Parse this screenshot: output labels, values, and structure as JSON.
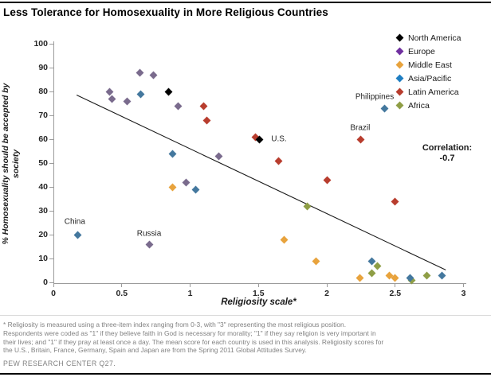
{
  "title": "Less Tolerance for Homosexuality in More Religious Countries",
  "x_axis": {
    "title": "Religiosity scale*",
    "ticks": [
      "0",
      "0.5",
      "1",
      "1.5",
      "2",
      "2.5",
      "3"
    ],
    "min": 0,
    "max": 3
  },
  "y_axis": {
    "title_line1": "% Homosexuality should be accepted by",
    "title_line2": "society",
    "ticks": [
      0,
      10,
      20,
      30,
      40,
      50,
      60,
      70,
      80,
      90,
      100
    ],
    "min": 0,
    "max": 100
  },
  "correlation": {
    "label": "Correlation:",
    "value": "-0.7"
  },
  "chart_data": {
    "type": "scatter",
    "xlabel": "Religiosity scale*",
    "ylabel": "% Homosexuality should be accepted by society",
    "xlim": [
      0,
      3
    ],
    "ylim": [
      0,
      100
    ],
    "correlation": -0.7,
    "trendline": {
      "x1": 0.17,
      "y1": 78.5,
      "x2": 2.87,
      "y2": 5.2
    },
    "series": [
      {
        "name": "North America",
        "color": "#000000",
        "point_color": "#000000",
        "points": [
          {
            "x": 0.84,
            "y": 80
          },
          {
            "x": 1.51,
            "y": 60,
            "label": "U.S.",
            "label_dx": 24,
            "label_dy": 0
          }
        ]
      },
      {
        "name": "Europe",
        "color": "#7030A0",
        "point_color": "#7A6B8D",
        "points": [
          {
            "x": 0.41,
            "y": 80
          },
          {
            "x": 0.43,
            "y": 77
          },
          {
            "x": 0.54,
            "y": 76
          },
          {
            "x": 0.63,
            "y": 88
          },
          {
            "x": 0.73,
            "y": 87
          },
          {
            "x": 0.91,
            "y": 74
          },
          {
            "x": 0.97,
            "y": 42
          },
          {
            "x": 1.21,
            "y": 53
          },
          {
            "x": 0.7,
            "y": 16,
            "label": "Russia",
            "label_dx": 0,
            "label_dy": -13
          }
        ]
      },
      {
        "name": "Middle East",
        "color": "#E8A33D",
        "point_color": "#E8A33D",
        "points": [
          {
            "x": 0.87,
            "y": 40
          },
          {
            "x": 1.69,
            "y": 18
          },
          {
            "x": 1.92,
            "y": 9
          },
          {
            "x": 2.24,
            "y": 2
          },
          {
            "x": 2.46,
            "y": 3
          },
          {
            "x": 2.5,
            "y": 2
          }
        ]
      },
      {
        "name": "Asia/Pacific",
        "color": "#1F7EC2",
        "point_color": "#44789E",
        "points": [
          {
            "x": 0.64,
            "y": 79
          },
          {
            "x": 0.87,
            "y": 54
          },
          {
            "x": 0.18,
            "y": 20,
            "label": "China",
            "label_dx": -4,
            "label_dy": -16
          },
          {
            "x": 1.04,
            "y": 39
          },
          {
            "x": 2.42,
            "y": 73,
            "label": "Philippines",
            "label_dx": -12,
            "label_dy": -14
          },
          {
            "x": 2.33,
            "y": 9
          },
          {
            "x": 2.61,
            "y": 2
          },
          {
            "x": 2.84,
            "y": 3
          }
        ]
      },
      {
        "name": "Latin America",
        "color": "#B83D2E",
        "point_color": "#B83D2E",
        "points": [
          {
            "x": 1.1,
            "y": 74
          },
          {
            "x": 1.12,
            "y": 68
          },
          {
            "x": 1.48,
            "y": 61
          },
          {
            "x": 1.65,
            "y": 51
          },
          {
            "x": 2.0,
            "y": 43
          },
          {
            "x": 2.25,
            "y": 60,
            "label": "Brazil",
            "label_dx": -1,
            "label_dy": -14
          },
          {
            "x": 2.5,
            "y": 34
          }
        ]
      },
      {
        "name": "Africa",
        "color": "#8F9E46",
        "point_color": "#8F9E46",
        "points": [
          {
            "x": 1.86,
            "y": 32
          },
          {
            "x": 2.37,
            "y": 7
          },
          {
            "x": 2.33,
            "y": 4
          },
          {
            "x": 2.62,
            "y": 1
          },
          {
            "x": 2.73,
            "y": 3
          }
        ]
      }
    ]
  },
  "footnote_lines": [
    "* Religiosity is measured using a three-item index ranging from 0-3, with \"3\" representing the most religious position.",
    "Respondents were coded as \"1\" if they believe faith in God is necessary for morality; \"1\" if they say religion is very important in",
    "their lives; and \"1\" if they pray at least once a day. The mean score for each country is used in this analysis. Religiosity scores for",
    "the U.S., Britain, France, Germany, Spain and Japan are from the Spring 2011 Global Attitudes Survey."
  ],
  "source": "PEW RESEARCH CENTER Q27."
}
